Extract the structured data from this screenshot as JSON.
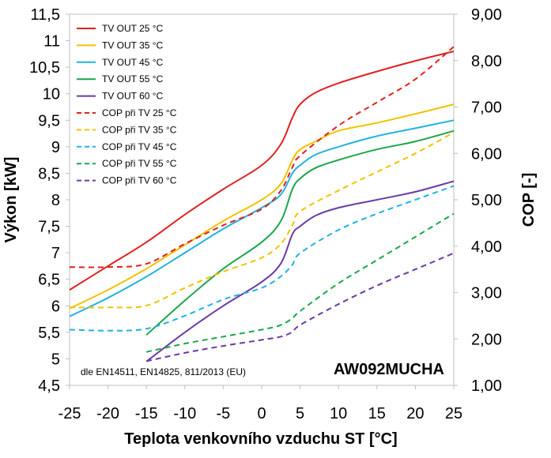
{
  "chart_data": {
    "type": "line",
    "xlabel": "Teplota venkovního vzduchu ST [°C]",
    "ylabel": "Výkon [kW]",
    "y2label": "COP [-]",
    "model": "AW092MUCHA",
    "note": "dle EN14511, EN14825, 811/2013 (EU)",
    "xlim": [
      -25,
      25
    ],
    "ylim": [
      4.5,
      11.5
    ],
    "y2lim": [
      1.0,
      9.0
    ],
    "x_ticks": [
      "-25",
      "-20",
      "-15",
      "-10",
      "-5",
      "0",
      "5",
      "10",
      "15",
      "20",
      "25"
    ],
    "y_ticks": [
      "4,5",
      "5",
      "5,5",
      "6",
      "6,5",
      "7",
      "7,5",
      "8",
      "8,5",
      "9",
      "9,5",
      "10",
      "10,5",
      "11",
      "11,5"
    ],
    "y2_ticks": [
      "1,00",
      "2,00",
      "3,00",
      "4,00",
      "5,00",
      "6,00",
      "7,00",
      "8,00",
      "9,00"
    ],
    "grid": false,
    "legend_position": "top-left",
    "series": [
      {
        "name": "TV OUT 25 °C",
        "axis": "left",
        "style": "solid",
        "color": "#e02020",
        "points": [
          [
            -25,
            6.3
          ],
          [
            -20,
            6.75
          ],
          [
            -15,
            7.2
          ],
          [
            -10,
            7.72
          ],
          [
            -5,
            8.2
          ],
          [
            0,
            8.65
          ],
          [
            2.5,
            9.05
          ],
          [
            4,
            9.55
          ],
          [
            5,
            9.8
          ],
          [
            7,
            10.02
          ],
          [
            10,
            10.2
          ],
          [
            15,
            10.42
          ],
          [
            20,
            10.62
          ],
          [
            25,
            10.8
          ]
        ]
      },
      {
        "name": "TV OUT 35 °C",
        "axis": "left",
        "style": "solid",
        "color": "#f2c200",
        "points": [
          [
            -25,
            5.95
          ],
          [
            -20,
            6.3
          ],
          [
            -15,
            6.7
          ],
          [
            -10,
            7.15
          ],
          [
            -5,
            7.6
          ],
          [
            0,
            8.0
          ],
          [
            2.5,
            8.3
          ],
          [
            4,
            8.75
          ],
          [
            5,
            8.95
          ],
          [
            7,
            9.1
          ],
          [
            10,
            9.3
          ],
          [
            15,
            9.45
          ],
          [
            20,
            9.62
          ],
          [
            25,
            9.8
          ]
        ]
      },
      {
        "name": "TV OUT 45 °C",
        "axis": "left",
        "style": "solid",
        "color": "#1fb3e0",
        "points": [
          [
            -25,
            5.8
          ],
          [
            -20,
            6.15
          ],
          [
            -15,
            6.55
          ],
          [
            -10,
            7.0
          ],
          [
            -5,
            7.45
          ],
          [
            0,
            7.85
          ],
          [
            2.5,
            8.1
          ],
          [
            4,
            8.5
          ],
          [
            5,
            8.65
          ],
          [
            7,
            8.85
          ],
          [
            10,
            9.0
          ],
          [
            15,
            9.2
          ],
          [
            20,
            9.35
          ],
          [
            25,
            9.5
          ]
        ]
      },
      {
        "name": "TV OUT 55 °C",
        "axis": "left",
        "style": "solid",
        "color": "#1aa64a",
        "points": [
          [
            -15,
            5.45
          ],
          [
            -10,
            6.1
          ],
          [
            -5,
            6.7
          ],
          [
            0,
            7.2
          ],
          [
            2.5,
            7.6
          ],
          [
            4,
            8.2
          ],
          [
            5,
            8.4
          ],
          [
            7,
            8.6
          ],
          [
            10,
            8.75
          ],
          [
            15,
            8.95
          ],
          [
            20,
            9.1
          ],
          [
            25,
            9.3
          ]
        ]
      },
      {
        "name": "TV OUT 60 °C",
        "axis": "left",
        "style": "solid",
        "color": "#6a3aa5",
        "points": [
          [
            -15,
            4.95
          ],
          [
            -10,
            5.5
          ],
          [
            -5,
            6.0
          ],
          [
            0,
            6.45
          ],
          [
            2.5,
            6.8
          ],
          [
            4,
            7.35
          ],
          [
            5,
            7.5
          ],
          [
            7,
            7.7
          ],
          [
            10,
            7.85
          ],
          [
            15,
            8.0
          ],
          [
            20,
            8.15
          ],
          [
            25,
            8.35
          ]
        ]
      },
      {
        "name": "COP při TV 25 °C",
        "axis": "right",
        "style": "dashed",
        "color": "#e02020",
        "points": [
          [
            -25,
            3.55
          ],
          [
            -20,
            3.55
          ],
          [
            -15,
            3.62
          ],
          [
            -10,
            4.05
          ],
          [
            -5,
            4.45
          ],
          [
            0,
            4.8
          ],
          [
            2.5,
            5.2
          ],
          [
            4,
            5.7
          ],
          [
            5,
            5.95
          ],
          [
            10,
            6.6
          ],
          [
            15,
            7.1
          ],
          [
            20,
            7.6
          ],
          [
            25,
            8.3
          ]
        ]
      },
      {
        "name": "COP při TV 35 °C",
        "axis": "right",
        "style": "dashed",
        "color": "#f2c200",
        "points": [
          [
            -25,
            2.68
          ],
          [
            -20,
            2.68
          ],
          [
            -15,
            2.72
          ],
          [
            -10,
            3.1
          ],
          [
            -5,
            3.45
          ],
          [
            0,
            3.75
          ],
          [
            2.5,
            4.05
          ],
          [
            4,
            4.45
          ],
          [
            5,
            4.75
          ],
          [
            10,
            5.2
          ],
          [
            15,
            5.6
          ],
          [
            20,
            6.0
          ],
          [
            25,
            6.45
          ]
        ]
      },
      {
        "name": "COP při TV 45 °C",
        "axis": "right",
        "style": "dashed",
        "color": "#1fb3e0",
        "points": [
          [
            -25,
            2.2
          ],
          [
            -20,
            2.18
          ],
          [
            -15,
            2.22
          ],
          [
            -10,
            2.5
          ],
          [
            -5,
            2.85
          ],
          [
            0,
            3.1
          ],
          [
            2.5,
            3.35
          ],
          [
            4,
            3.6
          ],
          [
            5,
            3.85
          ],
          [
            10,
            4.35
          ],
          [
            15,
            4.7
          ],
          [
            20,
            5.0
          ],
          [
            25,
            5.3
          ]
        ]
      },
      {
        "name": "COP při TV 55 °C",
        "axis": "right",
        "style": "dashed",
        "color": "#1aa64a",
        "points": [
          [
            -15,
            1.72
          ],
          [
            -10,
            1.9
          ],
          [
            -5,
            2.05
          ],
          [
            0,
            2.2
          ],
          [
            2.5,
            2.3
          ],
          [
            4,
            2.45
          ],
          [
            5,
            2.6
          ],
          [
            10,
            3.2
          ],
          [
            15,
            3.7
          ],
          [
            20,
            4.2
          ],
          [
            25,
            4.7
          ]
        ]
      },
      {
        "name": "COP při TV 60 °C",
        "axis": "right",
        "style": "dashed",
        "color": "#6a3aa5",
        "points": [
          [
            -15,
            1.52
          ],
          [
            -10,
            1.7
          ],
          [
            -5,
            1.85
          ],
          [
            0,
            1.98
          ],
          [
            2.5,
            2.05
          ],
          [
            4,
            2.15
          ],
          [
            5,
            2.3
          ],
          [
            10,
            2.75
          ],
          [
            15,
            3.15
          ],
          [
            20,
            3.5
          ],
          [
            25,
            3.85
          ]
        ]
      }
    ]
  }
}
